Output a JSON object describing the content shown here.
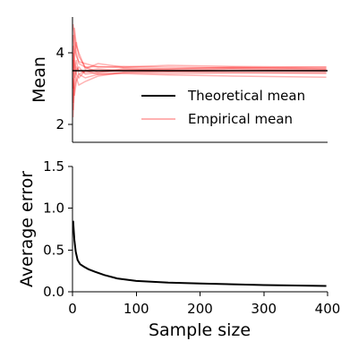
{
  "chart_data": [
    {
      "type": "line",
      "panel": "top",
      "xlabel": "",
      "ylabel": "Mean",
      "xlim": [
        0,
        400
      ],
      "ylim": [
        1.5,
        5.0
      ],
      "yticks": [
        2,
        4
      ],
      "legend": {
        "placement": "lower-right",
        "entries": [
          {
            "label": "Theoretical mean",
            "color": "#000000"
          },
          {
            "label": "Empirical mean",
            "color": "#ff0000",
            "alpha": 0.3
          }
        ]
      },
      "theoretical_mean": 3.5,
      "series": [
        {
          "values": [
            {
              "x": 1,
              "y": 2.4
            },
            {
              "x": 3,
              "y": 3.9
            },
            {
              "x": 6,
              "y": 4.3
            },
            {
              "x": 10,
              "y": 3.9
            },
            {
              "x": 20,
              "y": 3.6
            },
            {
              "x": 40,
              "y": 3.45
            },
            {
              "x": 80,
              "y": 3.55
            },
            {
              "x": 150,
              "y": 3.5
            },
            {
              "x": 250,
              "y": 3.55
            },
            {
              "x": 398,
              "y": 3.5
            }
          ]
        },
        {
          "values": [
            {
              "x": 1,
              "y": 4.8
            },
            {
              "x": 3,
              "y": 4.5
            },
            {
              "x": 6,
              "y": 4.0
            },
            {
              "x": 10,
              "y": 3.7
            },
            {
              "x": 20,
              "y": 3.6
            },
            {
              "x": 40,
              "y": 3.62
            },
            {
              "x": 80,
              "y": 3.58
            },
            {
              "x": 150,
              "y": 3.55
            },
            {
              "x": 250,
              "y": 3.6
            },
            {
              "x": 398,
              "y": 3.55
            }
          ]
        },
        {
          "values": [
            {
              "x": 1,
              "y": 3.0
            },
            {
              "x": 3,
              "y": 4.7
            },
            {
              "x": 6,
              "y": 4.2
            },
            {
              "x": 10,
              "y": 4.0
            },
            {
              "x": 20,
              "y": 3.55
            },
            {
              "x": 40,
              "y": 3.7
            },
            {
              "x": 80,
              "y": 3.6
            },
            {
              "x": 150,
              "y": 3.65
            },
            {
              "x": 250,
              "y": 3.62
            },
            {
              "x": 398,
              "y": 3.6
            }
          ]
        },
        {
          "values": [
            {
              "x": 1,
              "y": 2.2
            },
            {
              "x": 3,
              "y": 3.0
            },
            {
              "x": 6,
              "y": 3.3
            },
            {
              "x": 10,
              "y": 3.1
            },
            {
              "x": 20,
              "y": 3.2
            },
            {
              "x": 40,
              "y": 3.35
            },
            {
              "x": 80,
              "y": 3.45
            },
            {
              "x": 150,
              "y": 3.48
            },
            {
              "x": 250,
              "y": 3.45
            },
            {
              "x": 398,
              "y": 3.42
            }
          ]
        },
        {
          "values": [
            {
              "x": 1,
              "y": 4.0
            },
            {
              "x": 3,
              "y": 3.5
            },
            {
              "x": 6,
              "y": 3.8
            },
            {
              "x": 10,
              "y": 3.4
            },
            {
              "x": 20,
              "y": 3.5
            },
            {
              "x": 40,
              "y": 3.55
            },
            {
              "x": 80,
              "y": 3.5
            },
            {
              "x": 150,
              "y": 3.52
            },
            {
              "x": 250,
              "y": 3.5
            },
            {
              "x": 398,
              "y": 3.48
            }
          ]
        },
        {
          "values": [
            {
              "x": 1,
              "y": 3.3
            },
            {
              "x": 3,
              "y": 2.8
            },
            {
              "x": 6,
              "y": 3.2
            },
            {
              "x": 10,
              "y": 3.4
            },
            {
              "x": 20,
              "y": 3.3
            },
            {
              "x": 40,
              "y": 3.4
            },
            {
              "x": 80,
              "y": 3.42
            },
            {
              "x": 150,
              "y": 3.38
            },
            {
              "x": 250,
              "y": 3.35
            },
            {
              "x": 398,
              "y": 3.32
            }
          ]
        },
        {
          "values": [
            {
              "x": 1,
              "y": 4.5
            },
            {
              "x": 3,
              "y": 4.1
            },
            {
              "x": 6,
              "y": 3.9
            },
            {
              "x": 10,
              "y": 3.75
            },
            {
              "x": 20,
              "y": 3.7
            },
            {
              "x": 40,
              "y": 3.6
            },
            {
              "x": 80,
              "y": 3.62
            },
            {
              "x": 150,
              "y": 3.6
            },
            {
              "x": 250,
              "y": 3.58
            },
            {
              "x": 398,
              "y": 3.6
            }
          ]
        },
        {
          "values": [
            {
              "x": 1,
              "y": 3.8
            },
            {
              "x": 3,
              "y": 3.3
            },
            {
              "x": 6,
              "y": 3.6
            },
            {
              "x": 10,
              "y": 3.5
            },
            {
              "x": 20,
              "y": 3.45
            },
            {
              "x": 40,
              "y": 3.5
            },
            {
              "x": 80,
              "y": 3.52
            },
            {
              "x": 150,
              "y": 3.55
            },
            {
              "x": 250,
              "y": 3.57
            },
            {
              "x": 398,
              "y": 3.55
            }
          ]
        },
        {
          "values": [
            {
              "x": 1,
              "y": 2.6
            },
            {
              "x": 3,
              "y": 3.2
            },
            {
              "x": 6,
              "y": 3.5
            },
            {
              "x": 10,
              "y": 3.6
            },
            {
              "x": 20,
              "y": 3.4
            },
            {
              "x": 40,
              "y": 3.45
            },
            {
              "x": 80,
              "y": 3.5
            },
            {
              "x": 150,
              "y": 3.47
            },
            {
              "x": 250,
              "y": 3.5
            },
            {
              "x": 398,
              "y": 3.52
            }
          ]
        },
        {
          "values": [
            {
              "x": 1,
              "y": 4.2
            },
            {
              "x": 3,
              "y": 3.8
            },
            {
              "x": 6,
              "y": 3.4
            },
            {
              "x": 10,
              "y": 3.3
            },
            {
              "x": 20,
              "y": 3.5
            },
            {
              "x": 40,
              "y": 3.4
            },
            {
              "x": 80,
              "y": 3.45
            },
            {
              "x": 150,
              "y": 3.42
            },
            {
              "x": 250,
              "y": 3.44
            },
            {
              "x": 398,
              "y": 3.45
            }
          ]
        }
      ],
      "colors": {
        "theoretical": "#000000",
        "empirical": "#ff0000"
      }
    },
    {
      "type": "line",
      "panel": "bottom",
      "xlabel": "Sample size",
      "ylabel": "Average error",
      "xlim": [
        0,
        400
      ],
      "ylim": [
        0.0,
        1.5
      ],
      "xticks": [
        0,
        100,
        200,
        300,
        400
      ],
      "yticks": [
        0.0,
        0.5,
        1.0,
        1.5
      ],
      "ytick_labels": [
        "0.0",
        "0.5",
        "1.0",
        "1.5"
      ],
      "series": [
        {
          "values": [
            {
              "x": 1,
              "y": 0.85
            },
            {
              "x": 3,
              "y": 0.62
            },
            {
              "x": 5,
              "y": 0.48
            },
            {
              "x": 8,
              "y": 0.38
            },
            {
              "x": 12,
              "y": 0.33
            },
            {
              "x": 18,
              "y": 0.3
            },
            {
              "x": 25,
              "y": 0.27
            },
            {
              "x": 35,
              "y": 0.24
            },
            {
              "x": 50,
              "y": 0.2
            },
            {
              "x": 70,
              "y": 0.16
            },
            {
              "x": 100,
              "y": 0.13
            },
            {
              "x": 150,
              "y": 0.11
            },
            {
              "x": 200,
              "y": 0.1
            },
            {
              "x": 250,
              "y": 0.09
            },
            {
              "x": 300,
              "y": 0.08
            },
            {
              "x": 350,
              "y": 0.075
            },
            {
              "x": 398,
              "y": 0.07
            }
          ]
        }
      ],
      "colors": {
        "line": "#000000"
      }
    }
  ]
}
